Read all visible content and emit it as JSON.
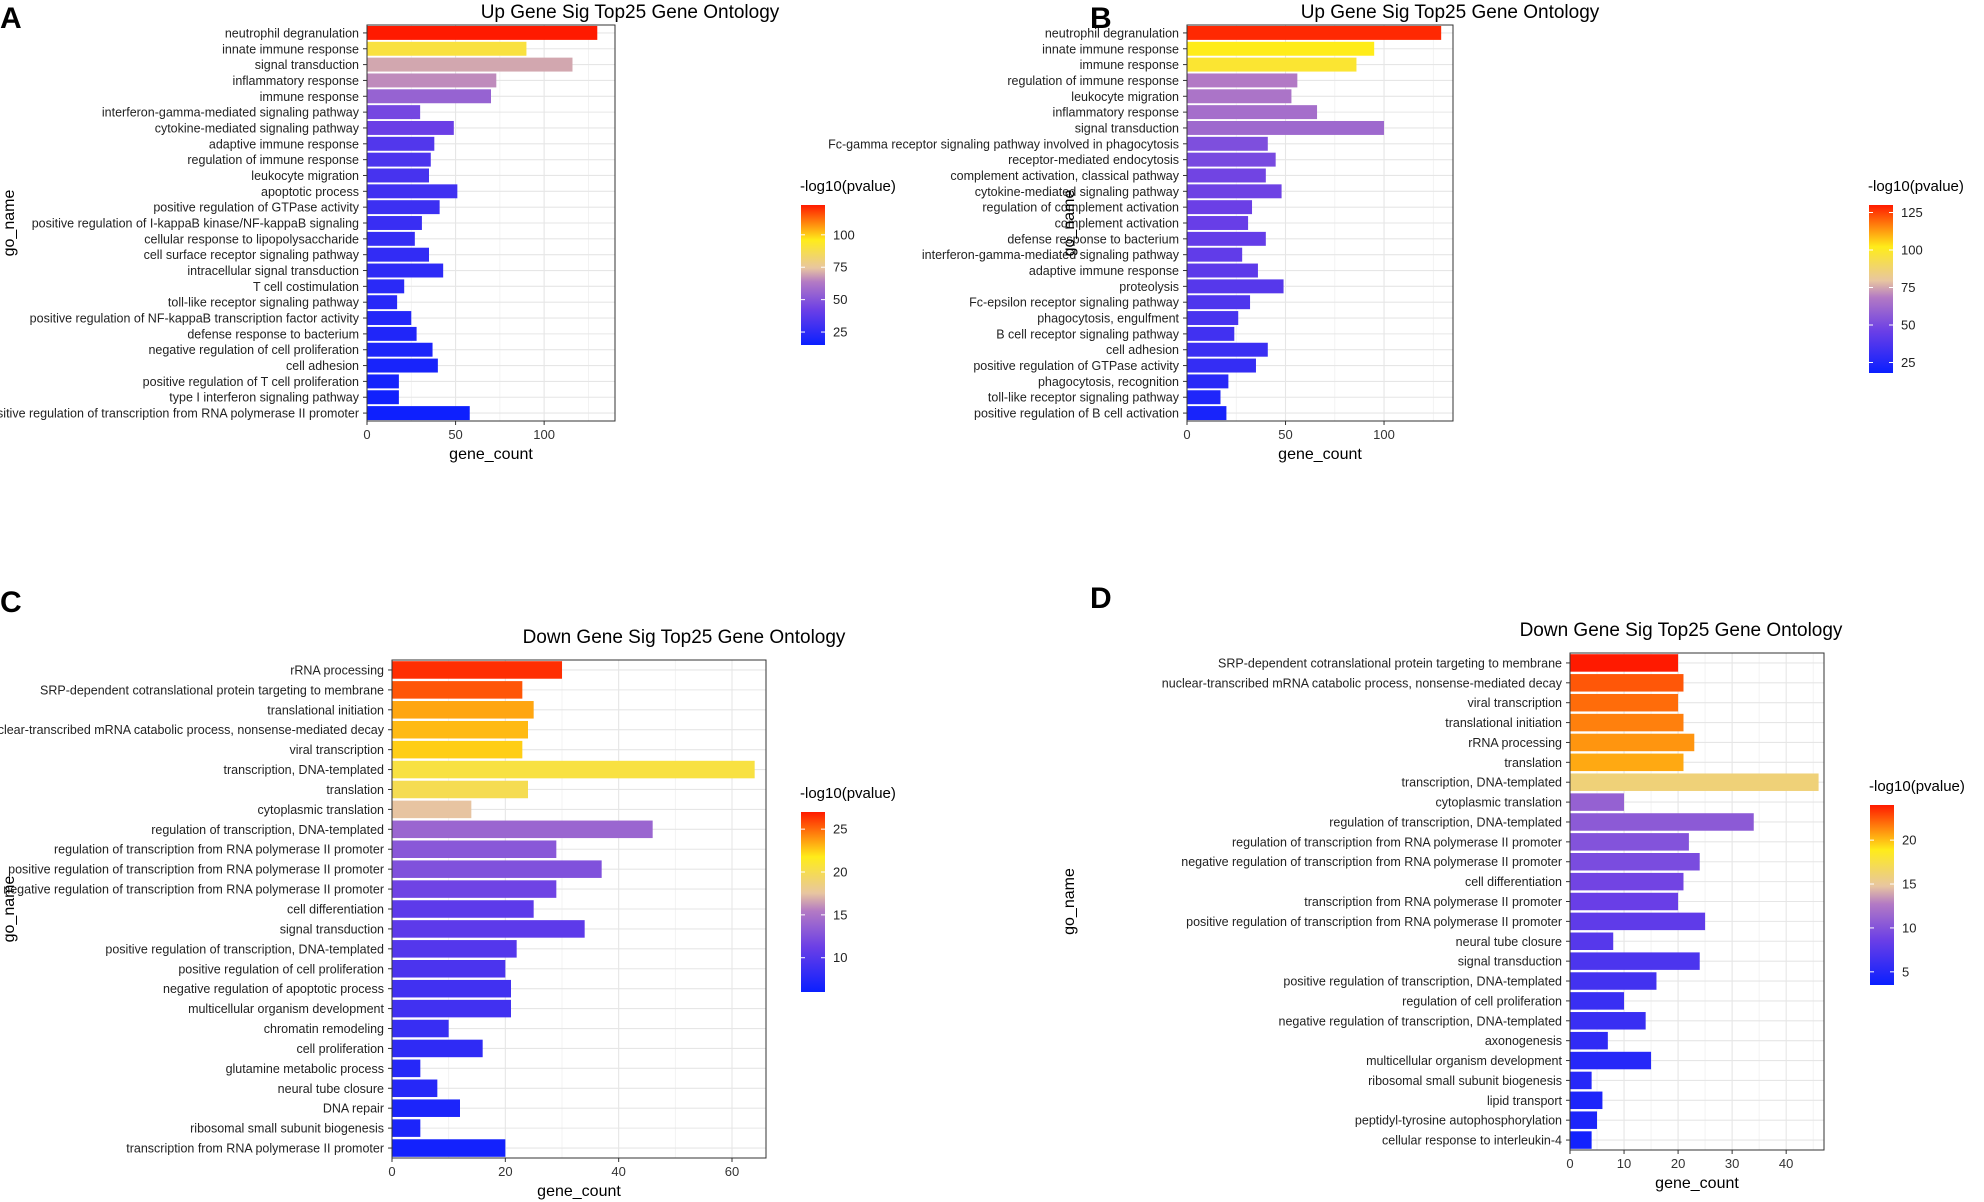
{
  "colors": {
    "low": "#0a1fff",
    "mid": "#9a4fd0",
    "midhigh": "#e7c2a6",
    "high2": "#ffeb1a",
    "top": "#ff1a00"
  },
  "chart_data": [
    {
      "panel": "A",
      "type": "bar",
      "title": "Up Gene Sig Top25 Gene Ontology",
      "xlabel": "gene_count",
      "ylabel": "go_name",
      "xlim": [
        0,
        140
      ],
      "xticks": [
        0,
        50,
        100
      ],
      "legend_title": "-log10(pvalue)",
      "color_range": [
        15,
        123
      ],
      "legend_ticks": [
        25,
        50,
        75,
        100
      ],
      "categories": [
        "neutrophil degranulation",
        "innate immune response",
        "signal transduction",
        "inflammatory response",
        "immune response",
        "interferon-gamma-mediated signaling pathway",
        "cytokine-mediated signaling pathway",
        "adaptive immune response",
        "regulation of immune response",
        "leukocyte migration",
        "apoptotic process",
        "positive regulation of GTPase activity",
        "positive regulation of I-kappaB kinase/NF-kappaB signaling",
        "cellular response to lipopolysaccharide",
        "cell surface receptor signaling pathway",
        "intracellular signal transduction",
        "T cell costimulation",
        "toll-like receptor signaling pathway",
        "positive regulation of NF-kappaB transcription factor activity",
        "defense response to bacterium",
        "negative regulation of cell proliferation",
        "cell adhesion",
        "positive regulation of T cell proliferation",
        "type I interferon signaling pathway",
        "positive regulation of transcription from RNA polymerase II promoter"
      ],
      "values": [
        130,
        90,
        116,
        73,
        70,
        30,
        49,
        38,
        36,
        35,
        51,
        41,
        31,
        27,
        35,
        43,
        21,
        17,
        25,
        28,
        37,
        40,
        18,
        18,
        58
      ],
      "pvalues": [
        123,
        90,
        70,
        66,
        55,
        45,
        42,
        35,
        33,
        32,
        30,
        29,
        28,
        27,
        26,
        25,
        24,
        23,
        22,
        21,
        20,
        19,
        18,
        17,
        16
      ]
    },
    {
      "panel": "B",
      "type": "bar",
      "title": "Up Gene Sig Top25 Gene Ontology",
      "xlabel": "gene_count",
      "ylabel": "go_name",
      "xlim": [
        0,
        135
      ],
      "xticks": [
        0,
        50,
        100
      ],
      "legend_title": "-log10(pvalue)",
      "color_range": [
        18,
        130
      ],
      "legend_ticks": [
        25,
        50,
        75,
        100,
        125
      ],
      "categories": [
        "neutrophil degranulation",
        "innate immune response",
        "immune response",
        "regulation of immune response",
        "leukocyte migration",
        "inflammatory response",
        "signal transduction",
        "Fc-gamma receptor signaling pathway involved in phagocytosis",
        "receptor-mediated endocytosis",
        "complement activation, classical pathway",
        "cytokine-mediated signaling pathway",
        "regulation of complement activation",
        "complement activation",
        "defense response to bacterium",
        "interferon-gamma-mediated signaling pathway",
        "adaptive immune response",
        "proteolysis",
        "Fc-epsilon receptor signaling pathway",
        "phagocytosis, engulfment",
        "B cell receptor signaling pathway",
        "cell adhesion",
        "positive regulation of GTPase activity",
        "phagocytosis, recognition",
        "toll-like receptor signaling pathway",
        "positive regulation of B cell activation"
      ],
      "values": [
        129,
        95,
        86,
        56,
        53,
        66,
        100,
        41,
        45,
        40,
        48,
        33,
        31,
        40,
        28,
        36,
        49,
        32,
        26,
        24,
        41,
        35,
        21,
        17,
        20
      ],
      "pvalues": [
        128,
        102,
        98,
        68,
        66,
        64,
        62,
        52,
        50,
        48,
        47,
        46,
        45,
        44,
        43,
        42,
        40,
        38,
        36,
        34,
        32,
        30,
        27,
        24,
        22
      ]
    },
    {
      "panel": "C",
      "type": "bar",
      "title": "Down Gene Sig Top25 Gene Ontology",
      "xlabel": "gene_count",
      "ylabel": "go_name",
      "xlim": [
        0,
        66
      ],
      "xticks": [
        0,
        20,
        40,
        60
      ],
      "legend_title": "-log10(pvalue)",
      "color_range": [
        6,
        27
      ],
      "legend_ticks": [
        10,
        15,
        20,
        25
      ],
      "categories": [
        "rRNA processing",
        "SRP-dependent cotranslational protein targeting to membrane",
        "translational initiation",
        "nuclear-transcribed mRNA catabolic process, nonsense-mediated decay",
        "viral transcription",
        "transcription, DNA-templated",
        "translation",
        "cytoplasmic translation",
        "regulation of transcription, DNA-templated",
        "regulation of transcription from RNA polymerase II promoter",
        "positive regulation of transcription from RNA polymerase II promoter",
        "negative regulation of transcription from RNA polymerase II promoter",
        "cell differentiation",
        "signal transduction",
        "positive regulation of transcription, DNA-templated",
        "positive regulation of cell proliferation",
        "negative regulation of apoptotic process",
        "multicellular organism development",
        "chromatin remodeling",
        "cell proliferation",
        "glutamine metabolic process",
        "neural tube closure",
        "DNA repair",
        "ribosomal small subunit biogenesis",
        "transcription from RNA polymerase II promoter"
      ],
      "values": [
        30,
        23,
        25,
        24,
        23,
        64,
        24,
        14,
        46,
        29,
        37,
        29,
        25,
        34,
        22,
        20,
        21,
        21,
        10,
        16,
        5,
        8,
        12,
        5,
        20
      ],
      "pvalues": [
        26.5,
        25.5,
        23.5,
        23,
        22.5,
        20.5,
        20,
        17.5,
        14,
        13,
        12.5,
        11.5,
        10.5,
        10.5,
        10,
        9.5,
        9,
        9,
        8.5,
        8,
        7.5,
        7.5,
        7,
        7,
        6.5
      ]
    },
    {
      "panel": "D",
      "type": "bar",
      "title": "Down Gene Sig Top25 Gene Ontology",
      "xlabel": "gene_count",
      "ylabel": "go_name",
      "xlim": [
        0,
        47
      ],
      "xticks": [
        0,
        10,
        20,
        30,
        40
      ],
      "legend_title": "-log10(pvalue)",
      "color_range": [
        3.5,
        24
      ],
      "legend_ticks": [
        5,
        10,
        15,
        20
      ],
      "categories": [
        "SRP-dependent cotranslational protein targeting to membrane",
        "nuclear-transcribed mRNA catabolic process, nonsense-mediated decay",
        "viral transcription",
        "translational initiation",
        "rRNA processing",
        "translation",
        "transcription, DNA-templated",
        "cytoplasmic translation",
        "regulation of transcription, DNA-templated",
        "regulation of transcription from RNA polymerase II promoter",
        "negative regulation of transcription from RNA polymerase II promoter",
        "cell differentiation",
        "transcription from RNA polymerase II promoter",
        "positive regulation of transcription from RNA polymerase II promoter",
        "neural tube closure",
        "signal transduction",
        "positive regulation of transcription, DNA-templated",
        "regulation of cell proliferation",
        "negative regulation of transcription, DNA-templated",
        "axonogenesis",
        "multicellular organism development",
        "ribosomal small subunit biogenesis",
        "lipid transport",
        "peptidyl-tyrosine autophosphorylation",
        "cellular response to interleukin-4"
      ],
      "values": [
        20,
        21,
        20,
        21,
        23,
        21,
        46,
        10,
        34,
        22,
        24,
        21,
        20,
        25,
        8,
        24,
        16,
        10,
        14,
        7,
        15,
        4,
        6,
        5,
        4
      ],
      "pvalues": [
        24,
        22.5,
        22,
        21.5,
        21,
        20.5,
        16,
        11,
        10.5,
        10,
        9.5,
        9,
        8.5,
        8,
        7.5,
        7,
        6.5,
        6,
        6,
        5.5,
        5,
        5,
        4.5,
        4.5,
        4
      ]
    }
  ]
}
